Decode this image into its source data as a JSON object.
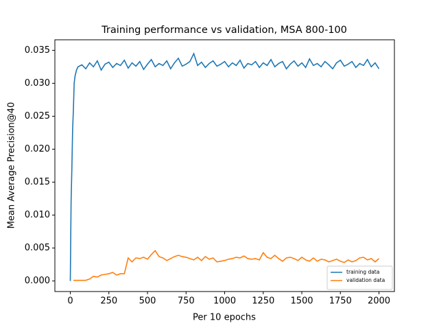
{
  "chart_data": {
    "type": "line",
    "title": "Training performance vs validation, MSA 800-100",
    "xlabel": "Per 10 epochs",
    "ylabel": "Mean Average Precision@40",
    "x": [
      0,
      5,
      10,
      15,
      20,
      25,
      30,
      40,
      50,
      75,
      100,
      125,
      150,
      175,
      200,
      225,
      250,
      275,
      300,
      325,
      350,
      375,
      400,
      425,
      450,
      475,
      500,
      525,
      550,
      575,
      600,
      625,
      650,
      675,
      700,
      725,
      750,
      775,
      800,
      825,
      850,
      875,
      900,
      925,
      950,
      975,
      1000,
      1025,
      1050,
      1075,
      1100,
      1125,
      1150,
      1175,
      1200,
      1225,
      1250,
      1275,
      1300,
      1325,
      1350,
      1375,
      1400,
      1425,
      1450,
      1475,
      1500,
      1525,
      1550,
      1575,
      1600,
      1625,
      1650,
      1675,
      1700,
      1725,
      1750,
      1775,
      1800,
      1825,
      1850,
      1875,
      1900,
      1925,
      1950,
      1975,
      2000
    ],
    "series": [
      {
        "name": "training data",
        "color": "#1f77b4",
        "values": [
          0.0,
          0.012,
          0.017,
          0.023,
          0.026,
          0.03,
          0.031,
          0.032,
          0.0325,
          0.0328,
          0.0322,
          0.0331,
          0.0325,
          0.0334,
          0.032,
          0.0329,
          0.0332,
          0.0324,
          0.033,
          0.0327,
          0.0335,
          0.0323,
          0.0331,
          0.0326,
          0.0333,
          0.0321,
          0.0329,
          0.0336,
          0.0325,
          0.033,
          0.0327,
          0.0334,
          0.0322,
          0.0331,
          0.0338,
          0.0326,
          0.0329,
          0.0333,
          0.0345,
          0.0327,
          0.0332,
          0.0324,
          0.033,
          0.0334,
          0.0326,
          0.0329,
          0.0333,
          0.0325,
          0.0331,
          0.0327,
          0.0335,
          0.0323,
          0.033,
          0.0328,
          0.0333,
          0.0324,
          0.0331,
          0.0327,
          0.0336,
          0.0325,
          0.033,
          0.0333,
          0.0322,
          0.0329,
          0.0334,
          0.0326,
          0.0331,
          0.0324,
          0.0337,
          0.0327,
          0.033,
          0.0325,
          0.0333,
          0.0328,
          0.0322,
          0.0331,
          0.0335,
          0.0326,
          0.0329,
          0.0333,
          0.0324,
          0.033,
          0.0327,
          0.0336,
          0.0325,
          0.0331,
          0.0322
        ]
      },
      {
        "name": "validation data",
        "color": "#ff7f0e",
        "values": [
          null,
          null,
          null,
          null,
          0.0001,
          0.0001,
          0.0001,
          0.0001,
          0.0001,
          0.0001,
          0.0001,
          0.0003,
          0.0007,
          0.0006,
          0.0009,
          0.001,
          0.0011,
          0.0013,
          0.0009,
          0.0011,
          0.0011,
          0.0035,
          0.0029,
          0.0035,
          0.0034,
          0.0036,
          0.0033,
          0.004,
          0.0046,
          0.0037,
          0.0035,
          0.0031,
          0.0034,
          0.0037,
          0.0039,
          0.0037,
          0.0036,
          0.0034,
          0.0032,
          0.0036,
          0.0031,
          0.0037,
          0.0033,
          0.0035,
          0.0029,
          0.003,
          0.0031,
          0.0033,
          0.0034,
          0.0036,
          0.0035,
          0.0038,
          0.0034,
          0.0033,
          0.0034,
          0.0032,
          0.0043,
          0.0036,
          0.0034,
          0.0039,
          0.0034,
          0.003,
          0.0035,
          0.0036,
          0.0034,
          0.0031,
          0.0036,
          0.0032,
          0.003,
          0.0035,
          0.003,
          0.0033,
          0.0032,
          0.0029,
          0.0031,
          0.0033,
          0.003,
          0.0028,
          0.0032,
          0.0029,
          0.0031,
          0.0035,
          0.0036,
          0.0032,
          0.0034,
          0.0029,
          0.0034
        ]
      }
    ],
    "xlim": [
      -100,
      2100
    ],
    "ylim": [
      -0.0016,
      0.0366
    ],
    "xticks": [
      0,
      250,
      500,
      750,
      1000,
      1250,
      1500,
      1750,
      2000
    ],
    "yticks": [
      {
        "value": 0,
        "label": "0.000"
      },
      {
        "value": 0.005,
        "label": "0.005"
      },
      {
        "value": 0.01,
        "label": "0.010"
      },
      {
        "value": 0.015,
        "label": "0.015"
      },
      {
        "value": 0.02,
        "label": "0.020"
      },
      {
        "value": 0.025,
        "label": "0.025"
      },
      {
        "value": 0.03,
        "label": "0.030"
      },
      {
        "value": 0.035,
        "label": "0.035"
      }
    ],
    "legend": "lower right"
  }
}
